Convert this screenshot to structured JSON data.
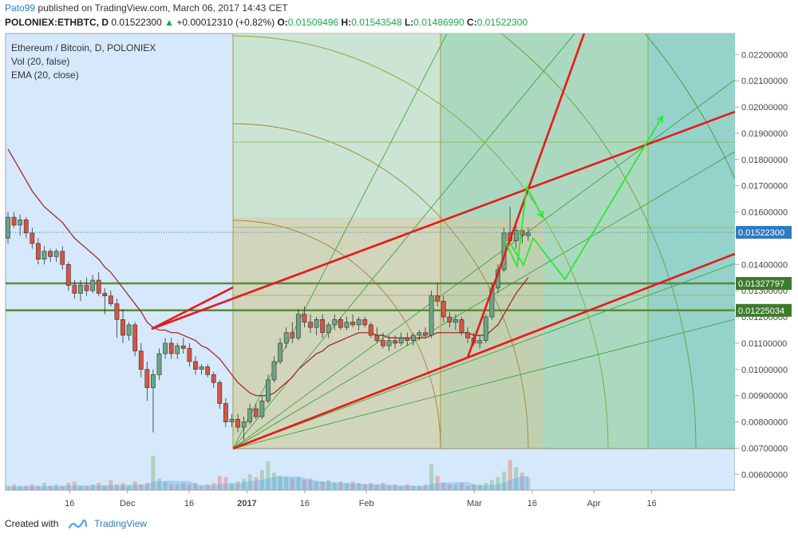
{
  "header": {
    "user": "Pato99",
    "published": "published on TradingView.com, March 06, 2017 14:43 CET"
  },
  "symbol_line": {
    "symbol": "POLONIEX:ETHBTC, D",
    "price": "0.01522300",
    "change": "+0.00012310 (+0.82%)",
    "o_label": "O:",
    "o": "0.01509496",
    "h_label": "H:",
    "h": "0.01543548",
    "l_label": "L:",
    "l": "0.01486990",
    "c_label": "C:",
    "c": "0.01522300"
  },
  "legend": {
    "title": "Ethereum / Bitcoin, D, POLONIEX",
    "vol": "Vol (20, false)",
    "ema": "EMA (20, close)"
  },
  "footer": {
    "created_with": "Created with",
    "brand": "TradingView"
  },
  "colors": {
    "up": "#6ba583",
    "down": "#d75442",
    "ema": "#a52a2a",
    "trend": "#e8191b",
    "arrows": "#2ee82e",
    "fan": "#2fa02f",
    "price_tag": "#2f7ac0",
    "level_tag": "#3d7a2c",
    "volume": "#5aa9e6"
  },
  "chart_data": {
    "type": "candlestick",
    "y_axis": {
      "ticks": [
        "0.02200000",
        "0.02100000",
        "0.02000000",
        "0.01900000",
        "0.01800000",
        "0.01700000",
        "0.01600000",
        "0.01400000",
        "0.01300000",
        "0.01200000",
        "0.01100000",
        "0.01000000",
        "0.00900000",
        "0.00800000",
        "0.00700000",
        "0.00600000"
      ],
      "tick_values": [
        0.022,
        0.021,
        0.02,
        0.019,
        0.018,
        0.017,
        0.016,
        0.014,
        0.013,
        0.012,
        0.011,
        0.01,
        0.009,
        0.008,
        0.007,
        0.006
      ],
      "range": [
        0.0054,
        0.0228
      ]
    },
    "x_axis": {
      "labels": [
        "16",
        "Dec",
        "16",
        "2017",
        "16",
        "Feb",
        "Mar",
        "16",
        "Apr",
        "16"
      ],
      "label_days": [
        16,
        31,
        47,
        62,
        77,
        93,
        121,
        136,
        152,
        167
      ]
    },
    "price_tags": [
      {
        "label": "0.01522300",
        "value": 0.015223,
        "kind": "last"
      },
      {
        "label": "0.01327797",
        "value": 0.01327797,
        "kind": "level"
      },
      {
        "label": "0.01225034",
        "value": 0.01225034,
        "kind": "level"
      }
    ],
    "candles": [
      [
        0.015,
        0.016,
        0.0148,
        0.0158
      ],
      [
        0.0158,
        0.016,
        0.0154,
        0.0155
      ],
      [
        0.0155,
        0.0159,
        0.0151,
        0.0157
      ],
      [
        0.0157,
        0.0158,
        0.015,
        0.0152
      ],
      [
        0.0152,
        0.0154,
        0.0146,
        0.0148
      ],
      [
        0.0148,
        0.015,
        0.014,
        0.0142
      ],
      [
        0.0142,
        0.0147,
        0.014,
        0.0145
      ],
      [
        0.0145,
        0.0146,
        0.0141,
        0.0143
      ],
      [
        0.0143,
        0.0146,
        0.0141,
        0.0145
      ],
      [
        0.0145,
        0.0147,
        0.0138,
        0.014
      ],
      [
        0.014,
        0.0141,
        0.013,
        0.0132
      ],
      [
        0.0132,
        0.0134,
        0.0127,
        0.0129
      ],
      [
        0.0129,
        0.0134,
        0.0126,
        0.0132
      ],
      [
        0.0132,
        0.0135,
        0.0128,
        0.013
      ],
      [
        0.013,
        0.0136,
        0.0129,
        0.0134
      ],
      [
        0.0134,
        0.0137,
        0.0128,
        0.0129
      ],
      [
        0.0129,
        0.0131,
        0.0121,
        0.0128
      ],
      [
        0.0128,
        0.013,
        0.0124,
        0.0125
      ],
      [
        0.0125,
        0.0127,
        0.0112,
        0.0119
      ],
      [
        0.0119,
        0.0123,
        0.011,
        0.0113
      ],
      [
        0.0113,
        0.0118,
        0.0111,
        0.0117
      ],
      [
        0.0117,
        0.0118,
        0.0105,
        0.0107
      ],
      [
        0.0107,
        0.011,
        0.0097,
        0.01
      ],
      [
        0.01,
        0.0103,
        0.0088,
        0.0093
      ],
      [
        0.0093,
        0.01,
        0.0076,
        0.0098
      ],
      [
        0.0098,
        0.0108,
        0.0096,
        0.0106
      ],
      [
        0.0106,
        0.0112,
        0.0104,
        0.011
      ],
      [
        0.011,
        0.0112,
        0.0104,
        0.0106
      ],
      [
        0.0106,
        0.011,
        0.0104,
        0.0109
      ],
      [
        0.0109,
        0.0112,
        0.0106,
        0.0108
      ],
      [
        0.0108,
        0.011,
        0.0101,
        0.0103
      ],
      [
        0.0103,
        0.0105,
        0.0098,
        0.01
      ],
      [
        0.01,
        0.0102,
        0.0098,
        0.0101
      ],
      [
        0.0101,
        0.0102,
        0.0097,
        0.0098
      ],
      [
        0.0098,
        0.0099,
        0.0093,
        0.0095
      ],
      [
        0.0095,
        0.0096,
        0.0085,
        0.0087
      ],
      [
        0.0087,
        0.0089,
        0.0078,
        0.008
      ],
      [
        0.008,
        0.0083,
        0.0078,
        0.0081
      ],
      [
        0.0081,
        0.0083,
        0.0076,
        0.0078
      ],
      [
        0.0078,
        0.0082,
        0.0073,
        0.008
      ],
      [
        0.008,
        0.0087,
        0.0079,
        0.0085
      ],
      [
        0.0085,
        0.0087,
        0.0081,
        0.0082
      ],
      [
        0.0082,
        0.009,
        0.0081,
        0.0088
      ],
      [
        0.0088,
        0.0098,
        0.0087,
        0.0096
      ],
      [
        0.0096,
        0.0105,
        0.0095,
        0.0103
      ],
      [
        0.0103,
        0.0112,
        0.0102,
        0.011
      ],
      [
        0.011,
        0.0116,
        0.0108,
        0.0114
      ],
      [
        0.0114,
        0.0118,
        0.011,
        0.0112
      ],
      [
        0.0112,
        0.0123,
        0.0111,
        0.0121
      ],
      [
        0.0121,
        0.0124,
        0.0116,
        0.0118
      ],
      [
        0.0118,
        0.0121,
        0.0114,
        0.0116
      ],
      [
        0.0116,
        0.012,
        0.0113,
        0.0119
      ],
      [
        0.0119,
        0.0121,
        0.0112,
        0.0114
      ],
      [
        0.0114,
        0.0118,
        0.0112,
        0.0117
      ],
      [
        0.0117,
        0.0121,
        0.0115,
        0.0119
      ],
      [
        0.0119,
        0.012,
        0.0115,
        0.0116
      ],
      [
        0.0116,
        0.012,
        0.0115,
        0.0118
      ],
      [
        0.0118,
        0.0121,
        0.0116,
        0.0117
      ],
      [
        0.0117,
        0.012,
        0.0115,
        0.0119
      ],
      [
        0.0119,
        0.012,
        0.0116,
        0.0117
      ],
      [
        0.0117,
        0.0118,
        0.0112,
        0.0113
      ],
      [
        0.0113,
        0.0116,
        0.011,
        0.0111
      ],
      [
        0.0111,
        0.0114,
        0.0108,
        0.0109
      ],
      [
        0.0109,
        0.0113,
        0.0107,
        0.0111
      ],
      [
        0.0111,
        0.0113,
        0.0108,
        0.011
      ],
      [
        0.011,
        0.0114,
        0.0109,
        0.0112
      ],
      [
        0.0112,
        0.0114,
        0.0109,
        0.0111
      ],
      [
        0.0111,
        0.0114,
        0.0109,
        0.0113
      ],
      [
        0.0113,
        0.0115,
        0.0111,
        0.0114
      ],
      [
        0.0114,
        0.0116,
        0.0112,
        0.0113
      ],
      [
        0.0113,
        0.013,
        0.0112,
        0.0128
      ],
      [
        0.0128,
        0.0133,
        0.0124,
        0.0126
      ],
      [
        0.0126,
        0.0128,
        0.0118,
        0.012
      ],
      [
        0.012,
        0.0122,
        0.0116,
        0.0118
      ],
      [
        0.0118,
        0.0121,
        0.0115,
        0.0119
      ],
      [
        0.0119,
        0.012,
        0.0113,
        0.0114
      ],
      [
        0.0114,
        0.0116,
        0.011,
        0.0112
      ],
      [
        0.0112,
        0.0114,
        0.0109,
        0.011
      ],
      [
        0.011,
        0.0113,
        0.0108,
        0.0111
      ],
      [
        0.0111,
        0.0121,
        0.011,
        0.012
      ],
      [
        0.012,
        0.0133,
        0.0119,
        0.0131
      ],
      [
        0.0131,
        0.014,
        0.0129,
        0.0138
      ],
      [
        0.0138,
        0.0154,
        0.0137,
        0.0152
      ],
      [
        0.0152,
        0.0162,
        0.0148,
        0.0149
      ],
      [
        0.0149,
        0.0155,
        0.0146,
        0.0153
      ],
      [
        0.0153,
        0.0154,
        0.0148,
        0.0151
      ],
      [
        0.0151,
        0.0154,
        0.0149,
        0.0152
      ]
    ],
    "ema": [
      0.0184,
      0.018,
      0.0176,
      0.0172,
      0.0168,
      0.0165,
      0.0162,
      0.016,
      0.0158,
      0.0156,
      0.0153,
      0.015,
      0.0148,
      0.0146,
      0.0144,
      0.0142,
      0.0139,
      0.0137,
      0.0134,
      0.0131,
      0.0128,
      0.0125,
      0.0122,
      0.0118,
      0.0116,
      0.0115,
      0.0115,
      0.0114,
      0.0114,
      0.0113,
      0.0112,
      0.0111,
      0.0109,
      0.0108,
      0.0106,
      0.0104,
      0.0101,
      0.0098,
      0.0095,
      0.0093,
      0.0091,
      0.009,
      0.009,
      0.009,
      0.0091,
      0.0093,
      0.0095,
      0.0097,
      0.01,
      0.0102,
      0.0104,
      0.0106,
      0.0107,
      0.0109,
      0.011,
      0.0111,
      0.0112,
      0.0113,
      0.0114,
      0.0114,
      0.0114,
      0.0113,
      0.0113,
      0.0112,
      0.0112,
      0.0112,
      0.0112,
      0.0112,
      0.0112,
      0.0112,
      0.0113,
      0.0114,
      0.0114,
      0.0114,
      0.0114,
      0.0114,
      0.0114,
      0.0113,
      0.0113,
      0.0113,
      0.0115,
      0.0117,
      0.0121,
      0.0125,
      0.0129,
      0.0132,
      0.0135
    ],
    "volume": [
      0.3,
      0.4,
      0.3,
      0.3,
      0.4,
      0.3,
      0.5,
      0.3,
      0.4,
      0.3,
      0.5,
      0.6,
      0.3,
      0.3,
      0.4,
      0.5,
      0.3,
      0.7,
      0.4,
      0.5,
      0.3,
      0.6,
      0.4,
      0.5,
      2.4,
      0.8,
      0.6,
      0.4,
      0.4,
      0.5,
      0.4,
      0.5,
      0.3,
      0.4,
      0.5,
      1.0,
      0.9,
      0.5,
      0.6,
      0.8,
      1.1,
      0.9,
      1.4,
      2.0,
      1.2,
      1.0,
      0.9,
      0.8,
      0.9,
      0.7,
      0.8,
      0.6,
      0.6,
      0.7,
      0.5,
      0.6,
      0.5,
      0.6,
      0.5,
      0.4,
      0.5,
      0.4,
      0.5,
      0.3,
      0.4,
      0.3,
      0.4,
      0.3,
      0.3,
      0.4,
      1.8,
      1.0,
      0.5,
      0.4,
      0.4,
      0.5,
      0.3,
      0.4,
      0.4,
      0.5,
      0.7,
      0.9,
      1.3,
      2.1,
      1.6,
      1.2,
      0.9
    ]
  }
}
